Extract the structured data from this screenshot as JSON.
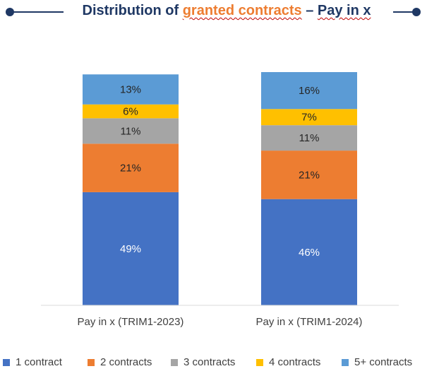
{
  "title": {
    "before": "Distribution of ",
    "highlight": "granted contracts",
    "after_sep": " – ",
    "squiggle": "Pay in x"
  },
  "colors": {
    "navy": "#1f3864",
    "accent_orange": "#ed7d31",
    "axis": "#d9d9d9",
    "tick_text": "#404040"
  },
  "chart_data": {
    "type": "bar",
    "stacked": true,
    "categories": [
      "Pay in x (TRIM1-2023)",
      "Pay in x (TRIM1-2024)"
    ],
    "series": [
      {
        "name": "1 contract",
        "color": "#4472c4",
        "values": [
          49,
          46
        ],
        "labels": [
          "49%",
          "46%"
        ],
        "label_color": "#ffffff"
      },
      {
        "name": "2 contracts",
        "color": "#ed7d31",
        "values": [
          21,
          21
        ],
        "labels": [
          "21%",
          "21%"
        ],
        "label_color": "#262626"
      },
      {
        "name": "3 contracts",
        "color": "#a5a5a5",
        "values": [
          11,
          11
        ],
        "labels": [
          "11%",
          "11%"
        ],
        "label_color": "#262626"
      },
      {
        "name": "4 contracts",
        "color": "#ffc000",
        "values": [
          6,
          7
        ],
        "labels": [
          "6%",
          "7%"
        ],
        "label_color": "#262626"
      },
      {
        "name": "5+ contracts",
        "color": "#5b9bd5",
        "values": [
          13,
          16
        ],
        "labels": [
          "13%",
          "16%"
        ],
        "label_color": "#262626"
      }
    ],
    "ylim": [
      0,
      101
    ],
    "grid": false,
    "legend_position": "bottom",
    "xlabel": "",
    "ylabel": ""
  }
}
